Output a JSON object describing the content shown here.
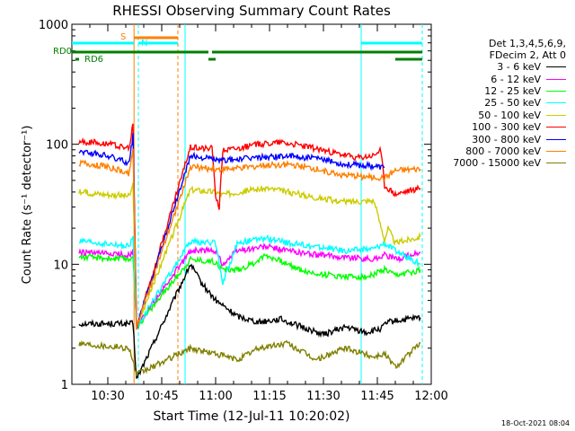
{
  "chart_data": {
    "type": "line",
    "title": "RHESSI Observing Summary Count Rates",
    "xlabel": "Start Time (12-Jul-11 10:20:02)",
    "ylabel": "Count Rate (s⁻¹ detector⁻¹)",
    "x_range_minutes": [
      20,
      120
    ],
    "x_ticks": [
      {
        "minute": 30,
        "label": "10:30"
      },
      {
        "minute": 45,
        "label": "10:45"
      },
      {
        "minute": 60,
        "label": "11:00"
      },
      {
        "minute": 75,
        "label": "11:15"
      },
      {
        "minute": 90,
        "label": "11:30"
      },
      {
        "minute": 105,
        "label": "11:45"
      },
      {
        "minute": 120,
        "label": "12:00"
      }
    ],
    "y_scale": "log",
    "ylim": [
      1,
      1000
    ],
    "y_ticks": [
      {
        "value": 1,
        "label": "1"
      },
      {
        "value": 10,
        "label": "10"
      },
      {
        "value": 100,
        "label": "100"
      },
      {
        "value": 1000,
        "label": "1000"
      }
    ],
    "legend_header": [
      "Det 1,3,4,5,6,9,",
      "FDecim 2, Att 0"
    ],
    "legend_placement": "right",
    "series": [
      {
        "name": "3 - 6 keV",
        "color": "#000000",
        "points": [
          [
            22,
            3.2
          ],
          [
            37,
            3.2
          ],
          [
            38,
            1.1
          ],
          [
            53,
            10
          ],
          [
            56,
            7
          ],
          [
            60,
            5
          ],
          [
            66,
            3.7
          ],
          [
            72,
            3.3
          ],
          [
            78,
            3.5
          ],
          [
            84,
            3
          ],
          [
            90,
            2.6
          ],
          [
            96,
            3
          ],
          [
            102,
            2.7
          ],
          [
            106,
            2.9
          ],
          [
            108,
            3.3
          ],
          [
            117,
            3.6
          ]
        ]
      },
      {
        "name": "6 - 12 keV",
        "color": "#ff00ff",
        "points": [
          [
            22,
            12.5
          ],
          [
            36,
            12
          ],
          [
            37,
            13
          ],
          [
            38,
            3
          ],
          [
            53,
            13
          ],
          [
            60,
            13
          ],
          [
            62,
            10
          ],
          [
            66,
            13
          ],
          [
            74,
            14
          ],
          [
            80,
            13
          ],
          [
            88,
            12
          ],
          [
            96,
            11.5
          ],
          [
            104,
            11
          ],
          [
            107,
            12
          ],
          [
            110,
            11
          ],
          [
            117,
            12.5
          ]
        ]
      },
      {
        "name": "12 - 25 keV",
        "color": "#00ff00",
        "points": [
          [
            22,
            11.5
          ],
          [
            36,
            11
          ],
          [
            37,
            12
          ],
          [
            38,
            3
          ],
          [
            53,
            11
          ],
          [
            60,
            10.5
          ],
          [
            62,
            9
          ],
          [
            66,
            9
          ],
          [
            70,
            10
          ],
          [
            74,
            12
          ],
          [
            80,
            10
          ],
          [
            86,
            8.5
          ],
          [
            94,
            8
          ],
          [
            102,
            7.8
          ],
          [
            107,
            9
          ],
          [
            110,
            8
          ],
          [
            117,
            9
          ]
        ]
      },
      {
        "name": "25 - 50 keV",
        "color": "#00ffff",
        "points": [
          [
            22,
            15.5
          ],
          [
            36,
            14
          ],
          [
            37,
            17
          ],
          [
            38,
            3
          ],
          [
            53,
            15.5
          ],
          [
            60,
            15
          ],
          [
            62,
            7
          ],
          [
            66,
            15
          ],
          [
            74,
            16.5
          ],
          [
            80,
            15
          ],
          [
            88,
            14
          ],
          [
            96,
            13
          ],
          [
            104,
            13.5
          ],
          [
            107,
            15
          ],
          [
            110,
            13
          ],
          [
            117,
            10
          ]
        ]
      },
      {
        "name": "50 - 100 keV",
        "color": "#cccc00",
        "points": [
          [
            22,
            40
          ],
          [
            36,
            37
          ],
          [
            37,
            45
          ],
          [
            38,
            3
          ],
          [
            53,
            42
          ],
          [
            60,
            40
          ],
          [
            62,
            38
          ],
          [
            66,
            40
          ],
          [
            74,
            43
          ],
          [
            80,
            40
          ],
          [
            88,
            36
          ],
          [
            96,
            33
          ],
          [
            104,
            34
          ],
          [
            107,
            16
          ],
          [
            108,
            20
          ],
          [
            110,
            15
          ],
          [
            117,
            17
          ]
        ]
      },
      {
        "name": "100 - 300 keV",
        "color": "#ff0000",
        "points": [
          [
            22,
            105
          ],
          [
            30,
            102
          ],
          [
            36,
            92
          ],
          [
            37,
            150
          ],
          [
            38,
            3
          ],
          [
            53,
            95
          ],
          [
            59,
            92
          ],
          [
            60,
            38
          ],
          [
            61,
            30
          ],
          [
            62,
            90
          ],
          [
            66,
            93
          ],
          [
            72,
            100
          ],
          [
            78,
            105
          ],
          [
            86,
            95
          ],
          [
            94,
            83
          ],
          [
            100,
            77
          ],
          [
            104,
            80
          ],
          [
            106,
            90
          ],
          [
            107,
            45
          ],
          [
            110,
            38
          ],
          [
            117,
            43
          ]
        ]
      },
      {
        "name": "300 - 800 keV",
        "color": "#0000ff",
        "points": [
          [
            22,
            88
          ],
          [
            30,
            80
          ],
          [
            36,
            70
          ],
          [
            37,
            120
          ],
          [
            38,
            3
          ],
          [
            53,
            80
          ],
          [
            60,
            75
          ],
          [
            61,
            72
          ],
          [
            62,
            74
          ],
          [
            66,
            75
          ],
          [
            72,
            78
          ],
          [
            80,
            80
          ],
          [
            88,
            76
          ],
          [
            96,
            68
          ],
          [
            104,
            66
          ],
          [
            107,
            64
          ]
        ]
      },
      {
        "name": "800 - 7000 keV",
        "color": "#ff8000",
        "points": [
          [
            22,
            70
          ],
          [
            30,
            65
          ],
          [
            36,
            57
          ],
          [
            37,
            95
          ],
          [
            38,
            3
          ],
          [
            53,
            65
          ],
          [
            60,
            62
          ],
          [
            66,
            63
          ],
          [
            72,
            66
          ],
          [
            80,
            68
          ],
          [
            88,
            62
          ],
          [
            96,
            55
          ],
          [
            104,
            53
          ],
          [
            107,
            52
          ],
          [
            110,
            60
          ],
          [
            117,
            62
          ]
        ]
      },
      {
        "name": "7000 - 15000 keV",
        "color": "#808000",
        "points": [
          [
            22,
            2.2
          ],
          [
            36,
            2
          ],
          [
            38,
            1.2
          ],
          [
            53,
            2
          ],
          [
            60,
            1.8
          ],
          [
            66,
            1.6
          ],
          [
            72,
            2
          ],
          [
            80,
            2.2
          ],
          [
            88,
            1.6
          ],
          [
            96,
            2
          ],
          [
            104,
            1.7
          ],
          [
            107,
            1.8
          ],
          [
            110,
            1.4
          ],
          [
            117,
            2.2
          ]
        ]
      }
    ],
    "flags": [
      {
        "name": "RD0",
        "label": "RD0",
        "color": "#008000"
      },
      {
        "name": "RD6",
        "label": "RD6",
        "color": "#008000"
      },
      {
        "name": "S",
        "label": "S",
        "color": "#ff8000"
      },
      {
        "name": "N",
        "label": "N",
        "color": "#00ffff"
      }
    ],
    "vertical_markers": [
      {
        "minute": 37.3,
        "color": "#ff8000",
        "style": "solid"
      },
      {
        "minute": 38.5,
        "color": "#00ffff",
        "style": "dashed"
      },
      {
        "minute": 49.5,
        "color": "#ff8000",
        "style": "dashed"
      },
      {
        "minute": 51.5,
        "color": "#00ffff",
        "style": "solid"
      },
      {
        "minute": 100.5,
        "color": "#00ffff",
        "style": "solid"
      },
      {
        "minute": 117.5,
        "color": "#00ffff",
        "style": "dashed"
      }
    ],
    "flag_bars": [
      {
        "flag": "RD0",
        "color": "#008000",
        "segments": [
          [
            20,
            58
          ],
          [
            59,
            117.5
          ]
        ]
      },
      {
        "flag": "RD6",
        "color": "#008000",
        "segments": [
          [
            21,
            22
          ],
          [
            58,
            60
          ],
          [
            110,
            117.5
          ]
        ]
      },
      {
        "flag": "S",
        "color": "#ff8000",
        "segments": [
          [
            37.3,
            49.5
          ]
        ]
      },
      {
        "flag": "N",
        "color": "#00ffff",
        "segments": [
          [
            20,
            37.3
          ],
          [
            38.5,
            49.5
          ],
          [
            100.5,
            117.5
          ]
        ]
      }
    ],
    "grid": false
  },
  "legend": {
    "header": [
      "Det 1,3,4,5,6,9,",
      "FDecim 2, Att 0"
    ],
    "entries": [
      {
        "label": "3 - 6 keV",
        "color": "#000000"
      },
      {
        "label": "6 - 12 keV",
        "color": "#ff00ff"
      },
      {
        "label": "12 - 25 keV",
        "color": "#00ff00"
      },
      {
        "label": "25 - 50 keV",
        "color": "#00ffff"
      },
      {
        "label": "50 - 100 keV",
        "color": "#cccc00"
      },
      {
        "label": "100 - 300 keV",
        "color": "#ff0000"
      },
      {
        "label": "300 - 800 keV",
        "color": "#0000ff"
      },
      {
        "label": "800 - 7000 keV",
        "color": "#ff8000"
      },
      {
        "label": "7000 - 15000 keV",
        "color": "#808000"
      }
    ]
  },
  "date_stamp": "18-Oct-2021 08:04"
}
